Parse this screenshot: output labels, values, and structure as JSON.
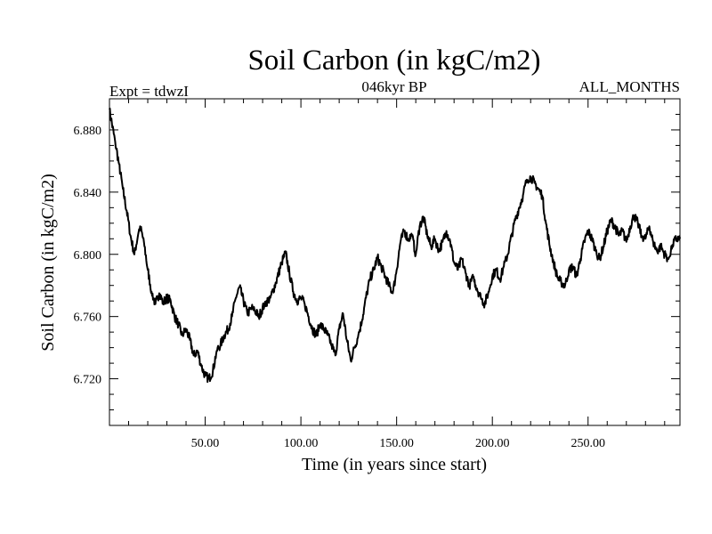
{
  "chart_data": {
    "type": "line",
    "title": "Soil Carbon (in kgC/m2)",
    "subtitle_left": "Expt = tdwzI",
    "subtitle_center": "046kyr BP",
    "subtitle_right": "ALL_MONTHS",
    "xlabel": "Time (in years since start)",
    "ylabel": "Soil Carbon (in kgC/m2)",
    "xlim": [
      0,
      298
    ],
    "ylim": [
      6.69,
      6.9
    ],
    "xticks": [
      50,
      100,
      150,
      200,
      250
    ],
    "xtick_labels": [
      "50.00",
      "100.00",
      "150.00",
      "200.00",
      "250.00"
    ],
    "yticks": [
      6.72,
      6.76,
      6.8,
      6.84,
      6.88
    ],
    "ytick_labels": [
      "6.720",
      "6.760",
      "6.800",
      "6.840",
      "6.880"
    ],
    "grid": false,
    "series": [
      {
        "name": "Soil Carbon",
        "x": [
          0,
          3,
          5,
          7,
          9,
          11,
          13,
          15,
          16,
          18,
          20,
          22,
          24,
          26,
          28,
          30,
          32,
          34,
          36,
          38,
          40,
          42,
          44,
          46,
          48,
          50,
          52,
          54,
          56,
          58,
          60,
          62,
          64,
          66,
          68,
          70,
          72,
          75,
          78,
          81,
          84,
          87,
          90,
          92,
          94,
          96,
          98,
          100,
          102,
          104,
          106,
          108,
          110,
          112,
          114,
          116,
          118,
          120,
          122,
          124,
          126,
          128,
          130,
          132,
          134,
          136,
          138,
          140,
          142,
          144,
          146,
          148,
          150,
          152,
          154,
          156,
          158,
          160,
          162,
          164,
          166,
          168,
          170,
          172,
          174,
          176,
          178,
          180,
          182,
          184,
          186,
          188,
          190,
          192,
          194,
          196,
          198,
          200,
          202,
          204,
          206,
          208,
          210,
          212,
          214,
          216,
          218,
          220,
          222,
          224,
          226,
          228,
          230,
          232,
          234,
          236,
          238,
          240,
          242,
          244,
          246,
          248,
          250,
          252,
          254,
          256,
          258,
          260,
          262,
          264,
          266,
          268,
          270,
          272,
          274,
          276,
          278,
          280,
          282,
          284,
          286,
          288,
          290,
          292,
          294,
          296,
          298
        ],
        "values": [
          6.893,
          6.872,
          6.858,
          6.842,
          6.828,
          6.812,
          6.8,
          6.813,
          6.818,
          6.808,
          6.79,
          6.776,
          6.768,
          6.775,
          6.769,
          6.772,
          6.77,
          6.76,
          6.755,
          6.748,
          6.752,
          6.745,
          6.735,
          6.738,
          6.728,
          6.722,
          6.72,
          6.725,
          6.738,
          6.742,
          6.748,
          6.752,
          6.76,
          6.772,
          6.779,
          6.77,
          6.762,
          6.766,
          6.76,
          6.768,
          6.772,
          6.782,
          6.795,
          6.801,
          6.788,
          6.776,
          6.77,
          6.772,
          6.768,
          6.76,
          6.752,
          6.748,
          6.755,
          6.752,
          6.748,
          6.742,
          6.735,
          6.752,
          6.762,
          6.745,
          6.732,
          6.74,
          6.748,
          6.758,
          6.772,
          6.784,
          6.79,
          6.798,
          6.792,
          6.786,
          6.78,
          6.775,
          6.79,
          6.808,
          6.815,
          6.81,
          6.812,
          6.8,
          6.818,
          6.824,
          6.812,
          6.805,
          6.81,
          6.802,
          6.808,
          6.815,
          6.808,
          6.795,
          6.79,
          6.797,
          6.788,
          6.78,
          6.785,
          6.778,
          6.772,
          6.768,
          6.776,
          6.786,
          6.79,
          6.784,
          6.792,
          6.8,
          6.812,
          6.822,
          6.83,
          6.838,
          6.848,
          6.85,
          6.846,
          6.842,
          6.838,
          6.82,
          6.805,
          6.795,
          6.785,
          6.782,
          6.78,
          6.79,
          6.792,
          6.786,
          6.797,
          6.808,
          6.815,
          6.81,
          6.802,
          6.797,
          6.805,
          6.815,
          6.822,
          6.818,
          6.812,
          6.815,
          6.808,
          6.818,
          6.825,
          6.82,
          6.812,
          6.81,
          6.818,
          6.808,
          6.802,
          6.805,
          6.8,
          6.797,
          6.806,
          6.81,
          6.81
        ]
      }
    ]
  }
}
